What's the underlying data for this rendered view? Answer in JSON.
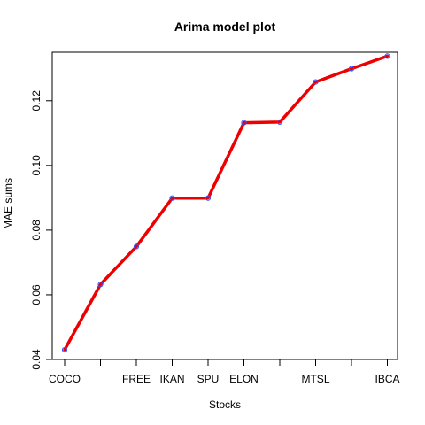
{
  "chart_data": {
    "type": "line",
    "title": "Arima model plot",
    "xlabel": "Stocks",
    "ylabel": "MAE sums",
    "categories": [
      "COCO",
      "",
      "FREE",
      "IKAN",
      "SPU",
      "ELON",
      "",
      "MTSL",
      "",
      "IBCA"
    ],
    "values": [
      0.043,
      0.0632,
      0.0749,
      0.0899,
      0.0899,
      0.1132,
      0.1134,
      0.1258,
      0.1299,
      0.1338
    ],
    "ylim": [
      0.04,
      0.135
    ],
    "yticks": [
      0.04,
      0.06,
      0.08,
      0.1,
      0.12
    ],
    "ytick_labels": [
      "0.04",
      "0.06",
      "0.08",
      "0.10",
      "0.12"
    ],
    "line_color": "#ee0000",
    "marker_color": "#3355ff",
    "grid": false,
    "legend": "none"
  }
}
